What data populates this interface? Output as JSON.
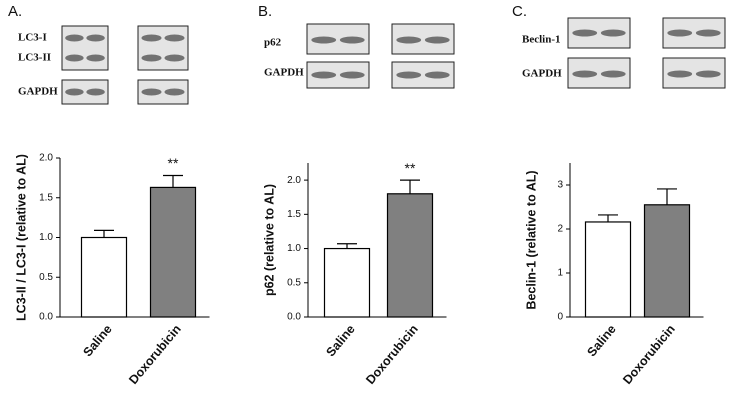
{
  "chart_data": [
    {
      "type": "bar",
      "panel": "A.",
      "blot_labels": [
        "LC3-I",
        "LC3-II",
        "GAPDH"
      ],
      "ylabel": "LC3-II / LC3-I (relative to AL)",
      "categories": [
        "Saline",
        "Doxorubicin"
      ],
      "values": [
        1.0,
        1.63
      ],
      "errors": [
        0.09,
        0.15
      ],
      "colors": [
        "#ffffff",
        "#808080"
      ],
      "annotations": [
        {
          "text": "**",
          "category": "Doxorubicin"
        }
      ],
      "ylim": [
        0,
        2
      ],
      "yticks": [
        {
          "value": 0,
          "label": "0.0"
        },
        0.5,
        {
          "value": 1,
          "label": "1.0"
        },
        1.5,
        {
          "value": 2,
          "label": "2.0"
        }
      ]
    },
    {
      "type": "bar",
      "panel": "B.",
      "blot_labels": [
        "p62",
        "GAPDH"
      ],
      "ylabel": "p62 (relative to AL)",
      "categories": [
        "Saline",
        "Doxorubicin"
      ],
      "values": [
        1.0,
        1.8
      ],
      "errors": [
        0.07,
        0.2
      ],
      "colors": [
        "#ffffff",
        "#808080"
      ],
      "annotations": [
        {
          "text": "**",
          "category": "Doxorubicin"
        }
      ],
      "ylim": [
        0,
        2.25
      ],
      "yticks": [
        {
          "value": 0,
          "label": "0.0"
        },
        0.5,
        {
          "value": 1,
          "label": "1.0"
        },
        1.5,
        {
          "value": 2,
          "label": "2.0"
        }
      ]
    },
    {
      "type": "bar",
      "panel": "C.",
      "blot_labels": [
        "Beclin-1",
        "GAPDH"
      ],
      "ylabel": "Beclin-1 (relative to AL)",
      "categories": [
        "Saline",
        "Doxorubicin"
      ],
      "values": [
        2.16,
        2.55
      ],
      "errors": [
        0.16,
        0.36
      ],
      "colors": [
        "#ffffff",
        "#808080"
      ],
      "annotations": [],
      "ylim": [
        0,
        3.5
      ],
      "yticks": [
        0,
        1,
        2,
        3
      ]
    }
  ]
}
